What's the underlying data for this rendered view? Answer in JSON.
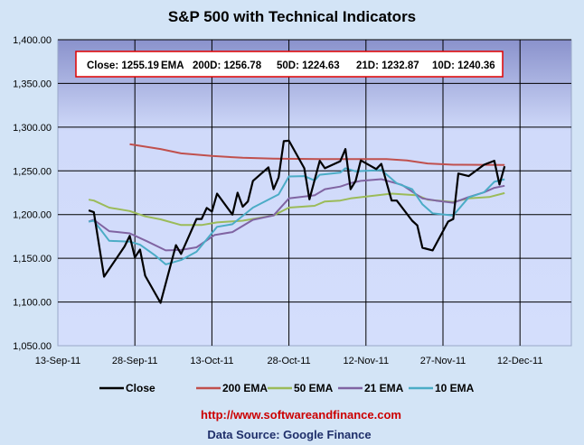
{
  "chart_data": {
    "type": "line",
    "title": "S&P 500 with Technical Indicators",
    "xlabel": "",
    "ylabel": "",
    "x_unit": "days since 13-Sep-11",
    "xlim": [
      0,
      100
    ],
    "ylim": [
      1050,
      1400
    ],
    "grid": true,
    "legend_position": "bottom",
    "x_ticks": [
      {
        "value": 0,
        "label": "13-Sep-11"
      },
      {
        "value": 15,
        "label": "28-Sep-11"
      },
      {
        "value": 30,
        "label": "13-Oct-11"
      },
      {
        "value": 45,
        "label": "28-Oct-11"
      },
      {
        "value": 60,
        "label": "12-Nov-11"
      },
      {
        "value": 75,
        "label": "27-Nov-11"
      },
      {
        "value": 90,
        "label": "12-Dec-11"
      }
    ],
    "y_ticks": [
      {
        "value": 1050,
        "label": "1,050.00"
      },
      {
        "value": 1100,
        "label": "1,100.00"
      },
      {
        "value": 1150,
        "label": "1,150.00"
      },
      {
        "value": 1200,
        "label": "1,200.00"
      },
      {
        "value": 1250,
        "label": "1,250.00"
      },
      {
        "value": 1300,
        "label": "1,300.00"
      },
      {
        "value": 1350,
        "label": "1,350.00"
      },
      {
        "value": 1400,
        "label": "1,400.00"
      }
    ],
    "info_box": {
      "close": "Close: 1255.19",
      "ema": "EMA",
      "d200": "200D: 1256.78",
      "d50": "50D: 1224.63",
      "d21": "21D: 1232.87",
      "d10": "10D: 1240.36"
    },
    "series": [
      {
        "name": "Close",
        "color": "#000000",
        "x": [
          6,
          7,
          9,
          13,
          14,
          15,
          16,
          17,
          20,
          23,
          24,
          27,
          28,
          29,
          30,
          31,
          34,
          35,
          36,
          37,
          38,
          41,
          42,
          43,
          44,
          45,
          48,
          49,
          51,
          52,
          55,
          56,
          57,
          58,
          59,
          62,
          63,
          65,
          66,
          69,
          70,
          71,
          73,
          76,
          77,
          78,
          80,
          83,
          85,
          86,
          87
        ],
        "y": [
          1204.8,
          1202.7,
          1129,
          1163.6,
          1175.6,
          1151,
          1160,
          1130,
          1099,
          1165,
          1155,
          1195,
          1195,
          1207.6,
          1203.4,
          1224,
          1200,
          1225,
          1209,
          1215,
          1238.5,
          1254,
          1229,
          1242.6,
          1284,
          1284.5,
          1253,
          1217.5,
          1261.5,
          1253,
          1261,
          1275,
          1229,
          1238.5,
          1262,
          1252,
          1258,
          1216,
          1216,
          1193,
          1187.6,
          1162,
          1159,
          1192,
          1195,
          1247,
          1244,
          1257,
          1261.5,
          1234.4,
          1255.2
        ]
      },
      {
        "name": "200 EMA",
        "color": "#c0504d",
        "x": [
          14,
          20,
          24,
          30,
          36,
          42,
          51,
          64,
          68,
          72,
          77,
          87
        ],
        "y": [
          1280.4,
          1275,
          1270,
          1267,
          1265,
          1264,
          1263.5,
          1263.5,
          1262,
          1258.5,
          1257,
          1256.8
        ]
      },
      {
        "name": "50 EMA",
        "color": "#9bbb59",
        "x": [
          6,
          7,
          10,
          14,
          17,
          20,
          24,
          28,
          31,
          36,
          42,
          45,
          50,
          52,
          55,
          57,
          65,
          70,
          72,
          77,
          80,
          84,
          87
        ],
        "y": [
          1217,
          1216,
          1208,
          1204,
          1198,
          1194.5,
          1188,
          1188,
          1191,
          1193,
          1199,
          1208,
          1210,
          1215,
          1216,
          1218.5,
          1224,
          1222,
          1217,
          1214.5,
          1218.5,
          1220,
          1224.6
        ]
      },
      {
        "name": "21 EMA",
        "color": "#8064a2",
        "x": [
          6,
          7,
          10,
          14,
          17.5,
          21,
          24,
          27,
          30.5,
          34,
          38,
          42,
          45,
          50,
          52,
          55,
          57,
          59,
          63,
          67,
          71,
          73.6,
          77,
          80,
          83,
          85,
          87
        ],
        "y": [
          1192,
          1194,
          1181,
          1178.5,
          1169,
          1159,
          1159.5,
          1162.5,
          1176.6,
          1180,
          1194,
          1199,
          1218.5,
          1222,
          1229,
          1232,
          1236,
          1238.5,
          1240.5,
          1234,
          1218.5,
          1216,
          1213.5,
          1220,
          1225.4,
          1230.6,
          1232.9
        ]
      },
      {
        "name": "10 EMA",
        "color": "#4bacc6",
        "x": [
          6,
          7,
          10,
          14,
          16,
          19,
          21,
          24,
          27,
          31,
          34,
          38,
          43,
          45,
          48,
          50,
          51,
          55,
          56,
          58,
          62,
          63,
          66,
          69,
          71,
          73,
          77,
          80,
          83,
          85,
          87
        ],
        "y": [
          1192,
          1193,
          1170,
          1169,
          1165.5,
          1153,
          1143,
          1148,
          1157.5,
          1186,
          1189,
          1208,
          1223,
          1243.6,
          1244,
          1239,
          1245.5,
          1248,
          1253,
          1249.5,
          1250.5,
          1251,
          1235.7,
          1229,
          1211.7,
          1201.4,
          1199,
          1219.6,
          1225.4,
          1237.5,
          1240.4
        ]
      }
    ]
  },
  "footer": {
    "link": "http://www.softwareandfinance.com",
    "source": "Data Source: Google Finance"
  }
}
